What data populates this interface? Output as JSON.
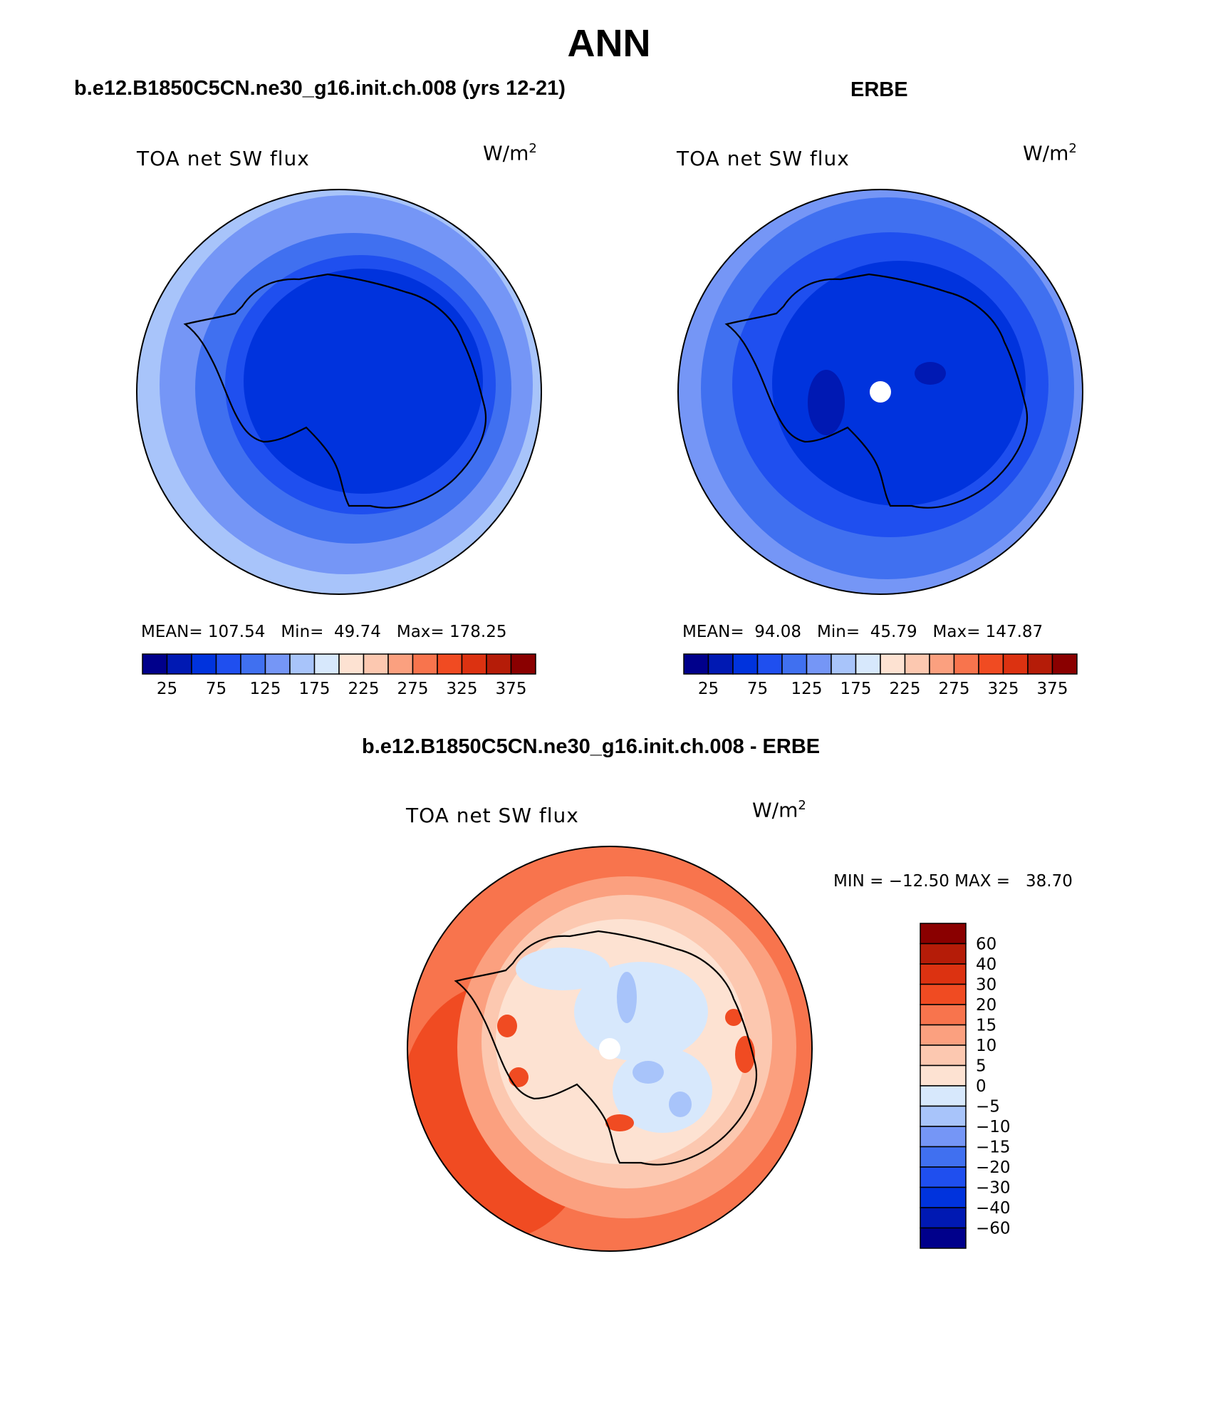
{
  "title": "ANN",
  "panels": [
    {
      "id": "model",
      "header": "b.e12.B1850C5CN.ne30_g16.init.ch.008 (yrs 12-21)",
      "label": "TOA net SW flux",
      "units": "W/m",
      "units_exp": "2",
      "stats": {
        "mean_label": "MEAN=",
        "mean": "107.54",
        "min_label": "Min=",
        "min": "49.74",
        "max_label": "Max=",
        "max": "178.25"
      }
    },
    {
      "id": "obs",
      "header": "ERBE",
      "label": "TOA net SW flux",
      "units": "W/m",
      "units_exp": "2",
      "stats": {
        "mean_label": "MEAN=",
        "mean": "94.08",
        "min_label": "Min=",
        "min": "45.79",
        "max_label": "Max=",
        "max": "147.87"
      }
    },
    {
      "id": "diff",
      "header": "b.e12.B1850C5CN.ne30_g16.init.ch.008 - ERBE",
      "label": "TOA net SW flux",
      "units": "W/m",
      "units_exp": "2",
      "stats": {
        "text": "MIN = −12.50 MAX =   38.70"
      }
    }
  ],
  "colorbar_top": {
    "colors": [
      "#00008b",
      "#0019b3",
      "#0033dd",
      "#1f4fef",
      "#4070f0",
      "#7596f6",
      "#a8c4fa",
      "#d7e8fc",
      "#fde2d2",
      "#fcc8b0",
      "#fba07f",
      "#f8744d",
      "#f04b22",
      "#dc3211",
      "#b51c08",
      "#8a0000"
    ],
    "tick_labels": [
      "25",
      "75",
      "125",
      "175",
      "225",
      "275",
      "325",
      "375"
    ]
  },
  "colorbar_diff": {
    "colors_top_to_bottom": [
      "#8a0000",
      "#b51c08",
      "#dc3211",
      "#f04b22",
      "#f8744d",
      "#fba07f",
      "#fcc8b0",
      "#fde2d2",
      "#d7e8fc",
      "#a8c4fa",
      "#7596f6",
      "#4070f0",
      "#1f4fef",
      "#0033dd",
      "#0019b3",
      "#00008b"
    ],
    "tick_labels": [
      "60",
      "40",
      "30",
      "20",
      "15",
      "10",
      "5",
      "0",
      "−5",
      "−10",
      "−15",
      "−20",
      "−30",
      "−40",
      "−60"
    ]
  },
  "colors": {
    "model_rings": [
      "#a8c4fa",
      "#7596f6",
      "#4070f0",
      "#1f4fef",
      "#0033dd"
    ],
    "obs_rings": [
      "#7596f6",
      "#4070f0",
      "#1f4fef",
      "#0033dd"
    ],
    "diff_rings": [
      "#f8744d",
      "#f04b22",
      "#fba07f",
      "#fcc8b0",
      "#fde2d2"
    ],
    "diff_lows": [
      "#d7e8fc",
      "#a8c4fa"
    ]
  }
}
